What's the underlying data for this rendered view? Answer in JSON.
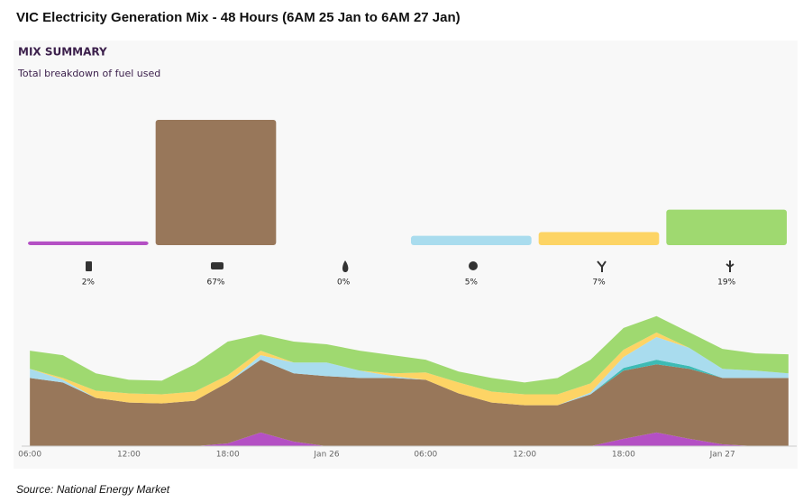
{
  "title": "VIC Electricity Generation Mix - 48 Hours (6AM 25 Jan to 6AM 27 Jan)",
  "source": "Source: National Energy Market",
  "chart_data": [
    {
      "type": "bar",
      "title": "MIX SUMMARY",
      "subtitle": "Total breakdown of fuel used",
      "categories": [
        null,
        null,
        null,
        null,
        null,
        null
      ],
      "values": [
        2,
        67,
        0,
        5,
        7,
        19
      ],
      "value_labels": [
        "2%",
        "67%",
        "0%",
        "5%",
        "7%",
        "19%"
      ],
      "colors": [
        "#b450c4",
        "#98775a",
        "#3dbbb5",
        "#a9dcee",
        "#fdd465",
        "#9fd970"
      ]
    },
    {
      "type": "area",
      "stacked": true,
      "x": [
        0,
        2,
        4,
        6,
        8,
        10,
        12,
        14,
        16,
        18,
        20,
        22,
        24,
        26,
        28,
        30,
        32,
        34,
        36,
        38,
        40,
        42,
        44,
        46
      ],
      "xlim": [
        -0.5,
        46.5
      ],
      "xticks": [
        {
          "value": 0,
          "label": "06:00"
        },
        {
          "value": 6,
          "label": "12:00"
        },
        {
          "value": 12,
          "label": "18:00"
        },
        {
          "value": 18,
          "label": "Jan 26"
        },
        {
          "value": 24,
          "label": "06:00"
        },
        {
          "value": 30,
          "label": "12:00"
        },
        {
          "value": 36,
          "label": "18:00"
        },
        {
          "value": 42,
          "label": "Jan 27"
        }
      ],
      "series": [
        {
          "color": "#b450c4",
          "values": [
            0,
            0,
            0,
            0,
            0,
            0,
            3,
            15,
            5,
            0,
            0,
            0,
            0,
            0,
            0,
            0,
            0,
            0,
            8,
            15,
            8,
            2,
            0,
            0
          ]
        },
        {
          "color": "#98775a",
          "values": [
            75,
            70,
            53,
            48,
            47,
            50,
            67,
            80,
            75,
            77,
            75,
            75,
            73,
            58,
            48,
            45,
            45,
            57,
            75,
            75,
            77,
            73,
            75,
            75
          ]
        },
        {
          "color": "#3dbbb5",
          "values": [
            0,
            0,
            0,
            0,
            0,
            0,
            0,
            0,
            0,
            0,
            0,
            0,
            0,
            0,
            0,
            0,
            0,
            0,
            3,
            5,
            3,
            0,
            0,
            0
          ]
        },
        {
          "color": "#a9dcee",
          "values": [
            10,
            3,
            0,
            0,
            0,
            0,
            0,
            5,
            12,
            15,
            8,
            2,
            0,
            0,
            0,
            0,
            0,
            2,
            12,
            25,
            20,
            10,
            8,
            5
          ]
        },
        {
          "color": "#fdd465",
          "values": [
            0,
            2,
            8,
            10,
            10,
            10,
            8,
            5,
            0,
            0,
            0,
            3,
            8,
            12,
            12,
            12,
            12,
            10,
            8,
            5,
            0,
            0,
            0,
            0
          ]
        },
        {
          "color": "#9fd970",
          "values": [
            20,
            25,
            19,
            15,
            15,
            30,
            37,
            18,
            23,
            20,
            22,
            20,
            14,
            12,
            15,
            13,
            18,
            26,
            24,
            18,
            17,
            22,
            19,
            21
          ]
        }
      ]
    }
  ]
}
